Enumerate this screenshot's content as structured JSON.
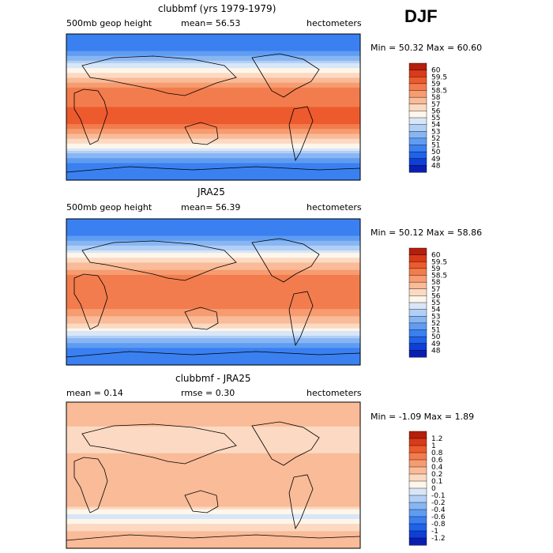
{
  "season": "DJF",
  "colors": {
    "scale": [
      "#08097a",
      "#0a1fb0",
      "#0e3fd6",
      "#1f63ea",
      "#3a80f0",
      "#5f9cf2",
      "#88b6f3",
      "#b2cff5",
      "#d8e6f8",
      "#fff6ea",
      "#fcd9c2",
      "#f9bb98",
      "#f69c70",
      "#f27c4d",
      "#ec5a2e",
      "#d93a17",
      "#b51e0c",
      "#870606"
    ]
  },
  "chart_data": [
    {
      "type": "heatmap",
      "title": "clubbmf (yrs 1979-1979)",
      "left_label": "500mb geop height",
      "mean_text": "mean=  56.53",
      "units": "hectometers",
      "minmax_text": "Min =  50.32 Max =  60.60",
      "colorbar_levels": [
        "60",
        "59.5",
        "59",
        "58.5",
        "58",
        "57",
        "56",
        "55",
        "54",
        "53",
        "52",
        "51",
        "50",
        "49",
        "48"
      ],
      "zonal_profile": [
        {
          "lat": 90,
          "value": 50.3
        },
        {
          "lat": 70,
          "value": 51.0
        },
        {
          "lat": 60,
          "value": 52.6
        },
        {
          "lat": 50,
          "value": 54.7
        },
        {
          "lat": 40,
          "value": 56.6
        },
        {
          "lat": 30,
          "value": 58.0
        },
        {
          "lat": 20,
          "value": 58.8
        },
        {
          "lat": 0,
          "value": 59.0
        },
        {
          "lat": -20,
          "value": 59.0
        },
        {
          "lat": -30,
          "value": 58.4
        },
        {
          "lat": -40,
          "value": 57.0
        },
        {
          "lat": -50,
          "value": 55.0
        },
        {
          "lat": -60,
          "value": 52.6
        },
        {
          "lat": -70,
          "value": 51.0
        },
        {
          "lat": -90,
          "value": 50.8
        }
      ]
    },
    {
      "type": "heatmap",
      "title": "JRA25",
      "left_label": "500mb geop height",
      "mean_text": "mean=  56.39",
      "units": "hectometers",
      "minmax_text": "Min =  50.12 Max =  58.86",
      "colorbar_levels": [
        "60",
        "59.5",
        "59",
        "58.5",
        "58",
        "57",
        "56",
        "55",
        "54",
        "53",
        "52",
        "51",
        "50",
        "49",
        "48"
      ],
      "zonal_profile": [
        {
          "lat": 90,
          "value": 50.2
        },
        {
          "lat": 70,
          "value": 50.9
        },
        {
          "lat": 60,
          "value": 52.4
        },
        {
          "lat": 50,
          "value": 54.5
        },
        {
          "lat": 40,
          "value": 56.4
        },
        {
          "lat": 30,
          "value": 57.7
        },
        {
          "lat": 20,
          "value": 58.5
        },
        {
          "lat": 0,
          "value": 58.6
        },
        {
          "lat": -20,
          "value": 58.6
        },
        {
          "lat": -30,
          "value": 58.1
        },
        {
          "lat": -40,
          "value": 56.8
        },
        {
          "lat": -50,
          "value": 54.8
        },
        {
          "lat": -60,
          "value": 52.4
        },
        {
          "lat": -70,
          "value": 50.8
        },
        {
          "lat": -90,
          "value": 50.6
        }
      ]
    },
    {
      "type": "heatmap",
      "title": "clubbmf - JRA25",
      "left_label": "mean =   0.14",
      "mean_text": "rmse =   0.30",
      "units": "hectometers",
      "minmax_text": "Min =  -1.09 Max =   1.89",
      "colorbar_levels": [
        "1.2",
        "1",
        "0.8",
        "0.6",
        "0.4",
        "0.2",
        "0.1",
        "0",
        "-0.1",
        "-0.2",
        "-0.4",
        "-0.6",
        "-0.8",
        "-1",
        "-1.2"
      ],
      "zonal_profile": [
        {
          "lat": 90,
          "value": 0.3
        },
        {
          "lat": 60,
          "value": 0.2
        },
        {
          "lat": 40,
          "value": 0.1
        },
        {
          "lat": 20,
          "value": 0.25
        },
        {
          "lat": 0,
          "value": 0.3
        },
        {
          "lat": -20,
          "value": 0.3
        },
        {
          "lat": -40,
          "value": 0.2
        },
        {
          "lat": -50,
          "value": -0.1
        },
        {
          "lat": -60,
          "value": 0.1
        },
        {
          "lat": -80,
          "value": 0.3
        }
      ]
    }
  ]
}
